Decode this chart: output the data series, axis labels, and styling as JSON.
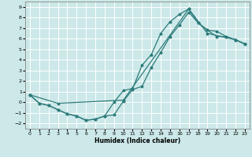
{
  "xlabel": "Humidex (Indice chaleur)",
  "bg_color": "#cce8e8",
  "line_color": "#2d7b7b",
  "xlim": [
    -0.5,
    23.5
  ],
  "ylim": [
    -2.5,
    9.5
  ],
  "xticks": [
    0,
    1,
    2,
    3,
    4,
    5,
    6,
    7,
    8,
    9,
    10,
    11,
    12,
    13,
    14,
    15,
    16,
    17,
    18,
    19,
    20,
    21,
    22,
    23
  ],
  "yticks": [
    -2,
    -1,
    0,
    1,
    2,
    3,
    4,
    5,
    6,
    7,
    8,
    9
  ],
  "line1_x": [
    0,
    1,
    2,
    3,
    4,
    5,
    6,
    7,
    8,
    9,
    10,
    11,
    12,
    13,
    14,
    15,
    16,
    17,
    18,
    19,
    20,
    21,
    22,
    23
  ],
  "line1_y": [
    0.7,
    -0.1,
    -0.3,
    -0.7,
    -1.1,
    -1.3,
    -1.7,
    -1.6,
    -1.3,
    -1.2,
    0.1,
    1.2,
    1.5,
    3.3,
    4.7,
    6.2,
    7.3,
    8.5,
    7.5,
    6.8,
    6.2,
    6.2,
    5.9,
    5.5
  ],
  "line2_x": [
    0,
    1,
    2,
    3,
    4,
    5,
    6,
    7,
    8,
    9,
    10,
    11,
    12,
    13,
    14,
    15,
    16,
    17,
    18,
    19,
    20,
    21,
    22,
    23
  ],
  "line2_y": [
    0.7,
    -0.1,
    -0.3,
    -0.7,
    -1.1,
    -1.3,
    -1.7,
    -1.6,
    -1.3,
    0.0,
    1.1,
    1.3,
    3.5,
    4.5,
    6.5,
    7.6,
    8.3,
    8.8,
    7.5,
    6.8,
    6.7,
    6.2,
    5.9,
    5.5
  ],
  "line3_x": [
    0,
    3,
    10,
    17,
    19,
    22,
    23
  ],
  "line3_y": [
    0.7,
    -0.1,
    0.2,
    8.8,
    6.5,
    5.9,
    5.5
  ]
}
